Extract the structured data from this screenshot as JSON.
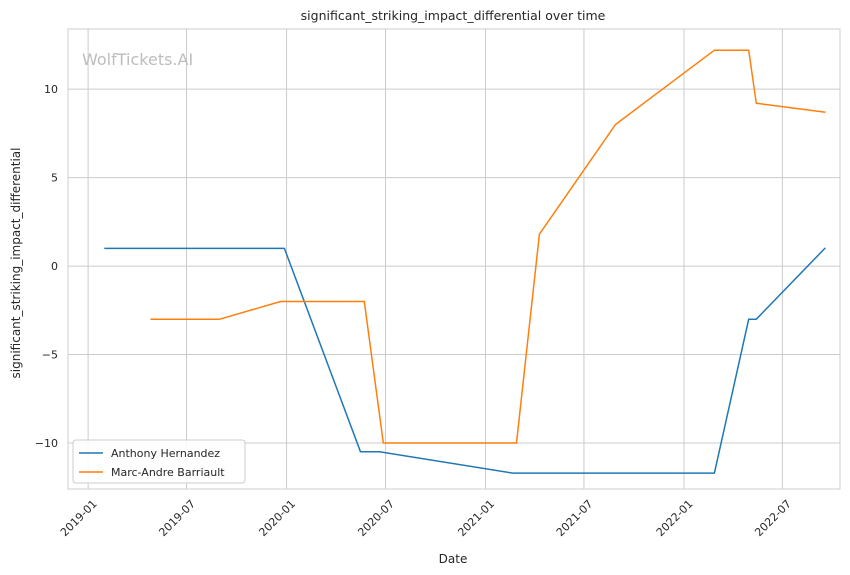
{
  "chart_data": {
    "type": "line",
    "title": "significant_striking_impact_differential over time",
    "xlabel": "Date",
    "ylabel": "significant_striking_impact_differential",
    "watermark": "WolfTickets.AI",
    "x_ticks": [
      "2019-01",
      "2019-07",
      "2020-01",
      "2020-07",
      "2021-01",
      "2021-07",
      "2022-01",
      "2022-07"
    ],
    "y_ticks": [
      10,
      5,
      0,
      -5,
      -10
    ],
    "y_tick_labels": [
      "10",
      "5",
      "0",
      "−5",
      "−10"
    ],
    "xlim": [
      "2018-11-25",
      "2022-10-15"
    ],
    "ylim": [
      -12.6,
      13.4
    ],
    "grid": true,
    "legend_position": "lower-left",
    "series": [
      {
        "name": "Anthony Hernandez",
        "color": "#1f77b4",
        "points": [
          {
            "x": "2019-02-01",
            "y": 1
          },
          {
            "x": "2019-12-28",
            "y": 1
          },
          {
            "x": "2020-05-16",
            "y": -10.5
          },
          {
            "x": "2020-06-20",
            "y": -10.5
          },
          {
            "x": "2021-02-20",
            "y": -11.7
          },
          {
            "x": "2022-02-26",
            "y": -11.7
          },
          {
            "x": "2022-04-30",
            "y": -3
          },
          {
            "x": "2022-05-14",
            "y": -3
          },
          {
            "x": "2022-09-17",
            "y": 1
          }
        ]
      },
      {
        "name": "Marc-Andre Barriault",
        "color": "#ff7f0e",
        "points": [
          {
            "x": "2019-04-27",
            "y": -3
          },
          {
            "x": "2019-08-31",
            "y": -3
          },
          {
            "x": "2019-12-21",
            "y": -2
          },
          {
            "x": "2020-05-23",
            "y": -2
          },
          {
            "x": "2020-06-27",
            "y": -10
          },
          {
            "x": "2021-02-27",
            "y": -10
          },
          {
            "x": "2021-04-10",
            "y": 1.8
          },
          {
            "x": "2021-08-28",
            "y": 8
          },
          {
            "x": "2022-02-26",
            "y": 12.2
          },
          {
            "x": "2022-04-30",
            "y": 12.2
          },
          {
            "x": "2022-05-14",
            "y": 9.2
          },
          {
            "x": "2022-09-17",
            "y": 8.7
          }
        ]
      }
    ]
  }
}
